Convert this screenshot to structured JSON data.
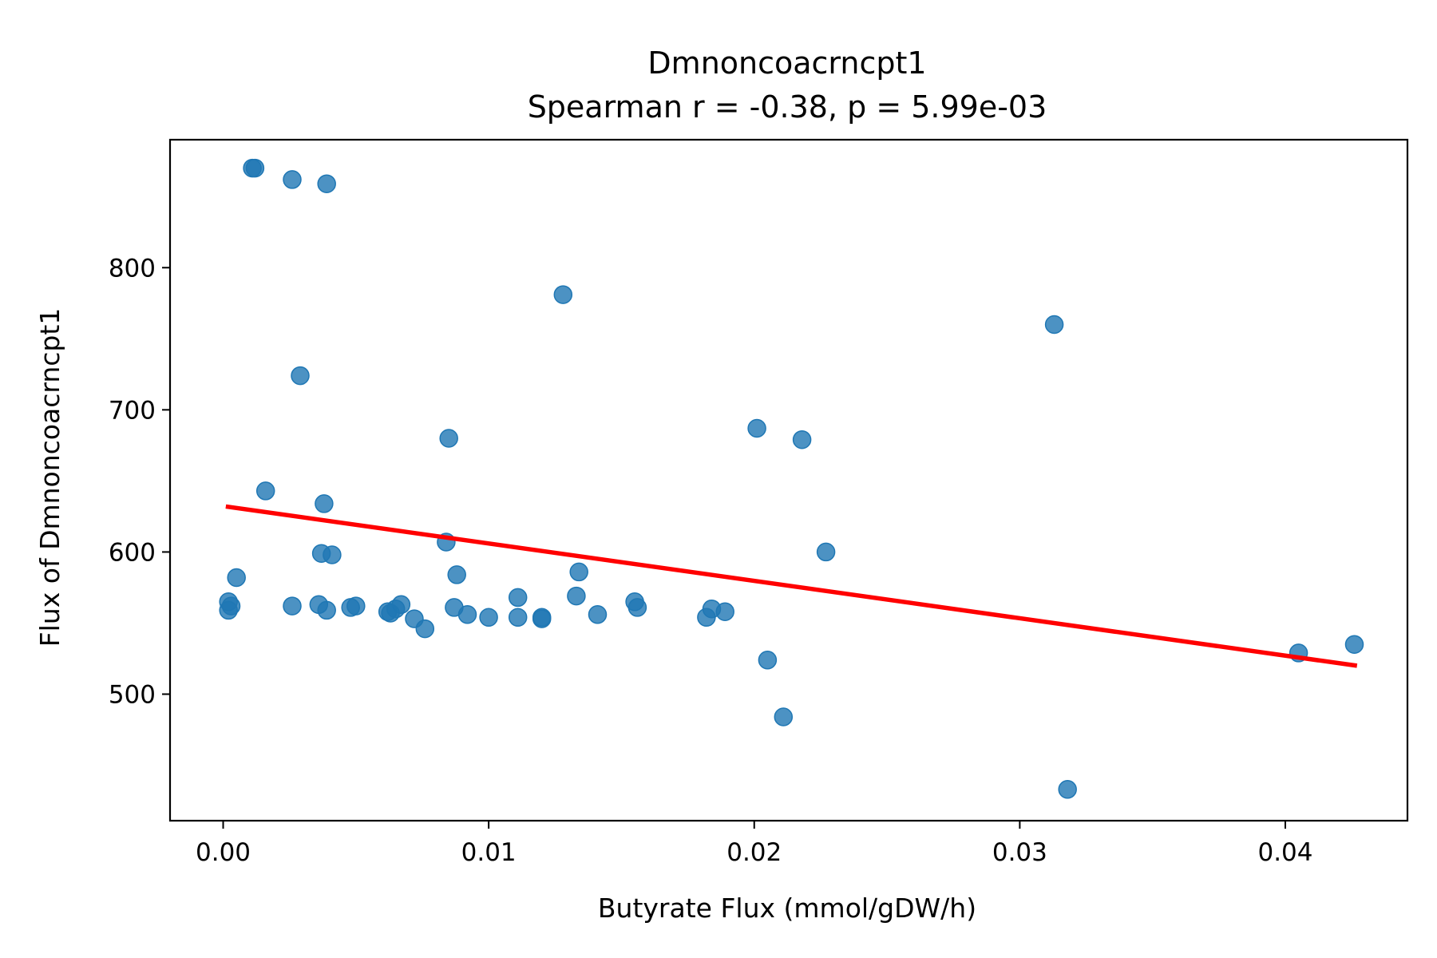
{
  "chart_data": {
    "type": "scatter",
    "title": "Dmnoncoacrncpt1",
    "subtitle": "Spearman r = -0.38, p = 5.99e-03",
    "xlabel": "Butyrate Flux (mmol/gDW/h)",
    "ylabel": "Flux of Dmnoncoacrncpt1",
    "xlim": [
      -0.002,
      0.0446
    ],
    "ylim": [
      411,
      890
    ],
    "xticks": [
      0.0,
      0.01,
      0.02,
      0.03,
      0.04
    ],
    "xtick_labels": [
      "0.00",
      "0.01",
      "0.02",
      "0.03",
      "0.04"
    ],
    "yticks": [
      500,
      600,
      700,
      800
    ],
    "ytick_labels": [
      "500",
      "600",
      "700",
      "800"
    ],
    "grid": false,
    "colors": {
      "points": "#1f77b4",
      "fit_line": "#ff0000"
    },
    "series": [
      {
        "type": "scatter",
        "points": [
          [
            0.0011,
            870
          ],
          [
            0.0012,
            870
          ],
          [
            0.0026,
            862
          ],
          [
            0.0039,
            859
          ],
          [
            0.0128,
            781
          ],
          [
            0.0313,
            760
          ],
          [
            0.0029,
            724
          ],
          [
            0.0085,
            680
          ],
          [
            0.0201,
            687
          ],
          [
            0.0218,
            679
          ],
          [
            0.0016,
            643
          ],
          [
            0.0038,
            634
          ],
          [
            0.0084,
            607
          ],
          [
            0.0037,
            599
          ],
          [
            0.0041,
            598
          ],
          [
            0.0227,
            600
          ],
          [
            0.0005,
            582
          ],
          [
            0.0088,
            584
          ],
          [
            0.0134,
            586
          ],
          [
            0.0002,
            565
          ],
          [
            0.0003,
            562
          ],
          [
            0.0002,
            559
          ],
          [
            0.0026,
            562
          ],
          [
            0.0036,
            563
          ],
          [
            0.0039,
            559
          ],
          [
            0.0048,
            561
          ],
          [
            0.005,
            562
          ],
          [
            0.0062,
            558
          ],
          [
            0.0063,
            557
          ],
          [
            0.0065,
            560
          ],
          [
            0.0067,
            563
          ],
          [
            0.0072,
            553
          ],
          [
            0.0076,
            546
          ],
          [
            0.0087,
            561
          ],
          [
            0.0092,
            556
          ],
          [
            0.01,
            554
          ],
          [
            0.0111,
            568
          ],
          [
            0.0111,
            554
          ],
          [
            0.012,
            554
          ],
          [
            0.012,
            553
          ],
          [
            0.0133,
            569
          ],
          [
            0.0141,
            556
          ],
          [
            0.0155,
            565
          ],
          [
            0.0156,
            561
          ],
          [
            0.0182,
            554
          ],
          [
            0.0184,
            560
          ],
          [
            0.0189,
            558
          ],
          [
            0.0205,
            524
          ],
          [
            0.0211,
            484
          ],
          [
            0.0318,
            433
          ],
          [
            0.0405,
            529
          ],
          [
            0.0426,
            535
          ]
        ]
      },
      {
        "type": "line",
        "x": [
          0.0001,
          0.0427
        ],
        "y": [
          632,
          520
        ]
      }
    ]
  }
}
